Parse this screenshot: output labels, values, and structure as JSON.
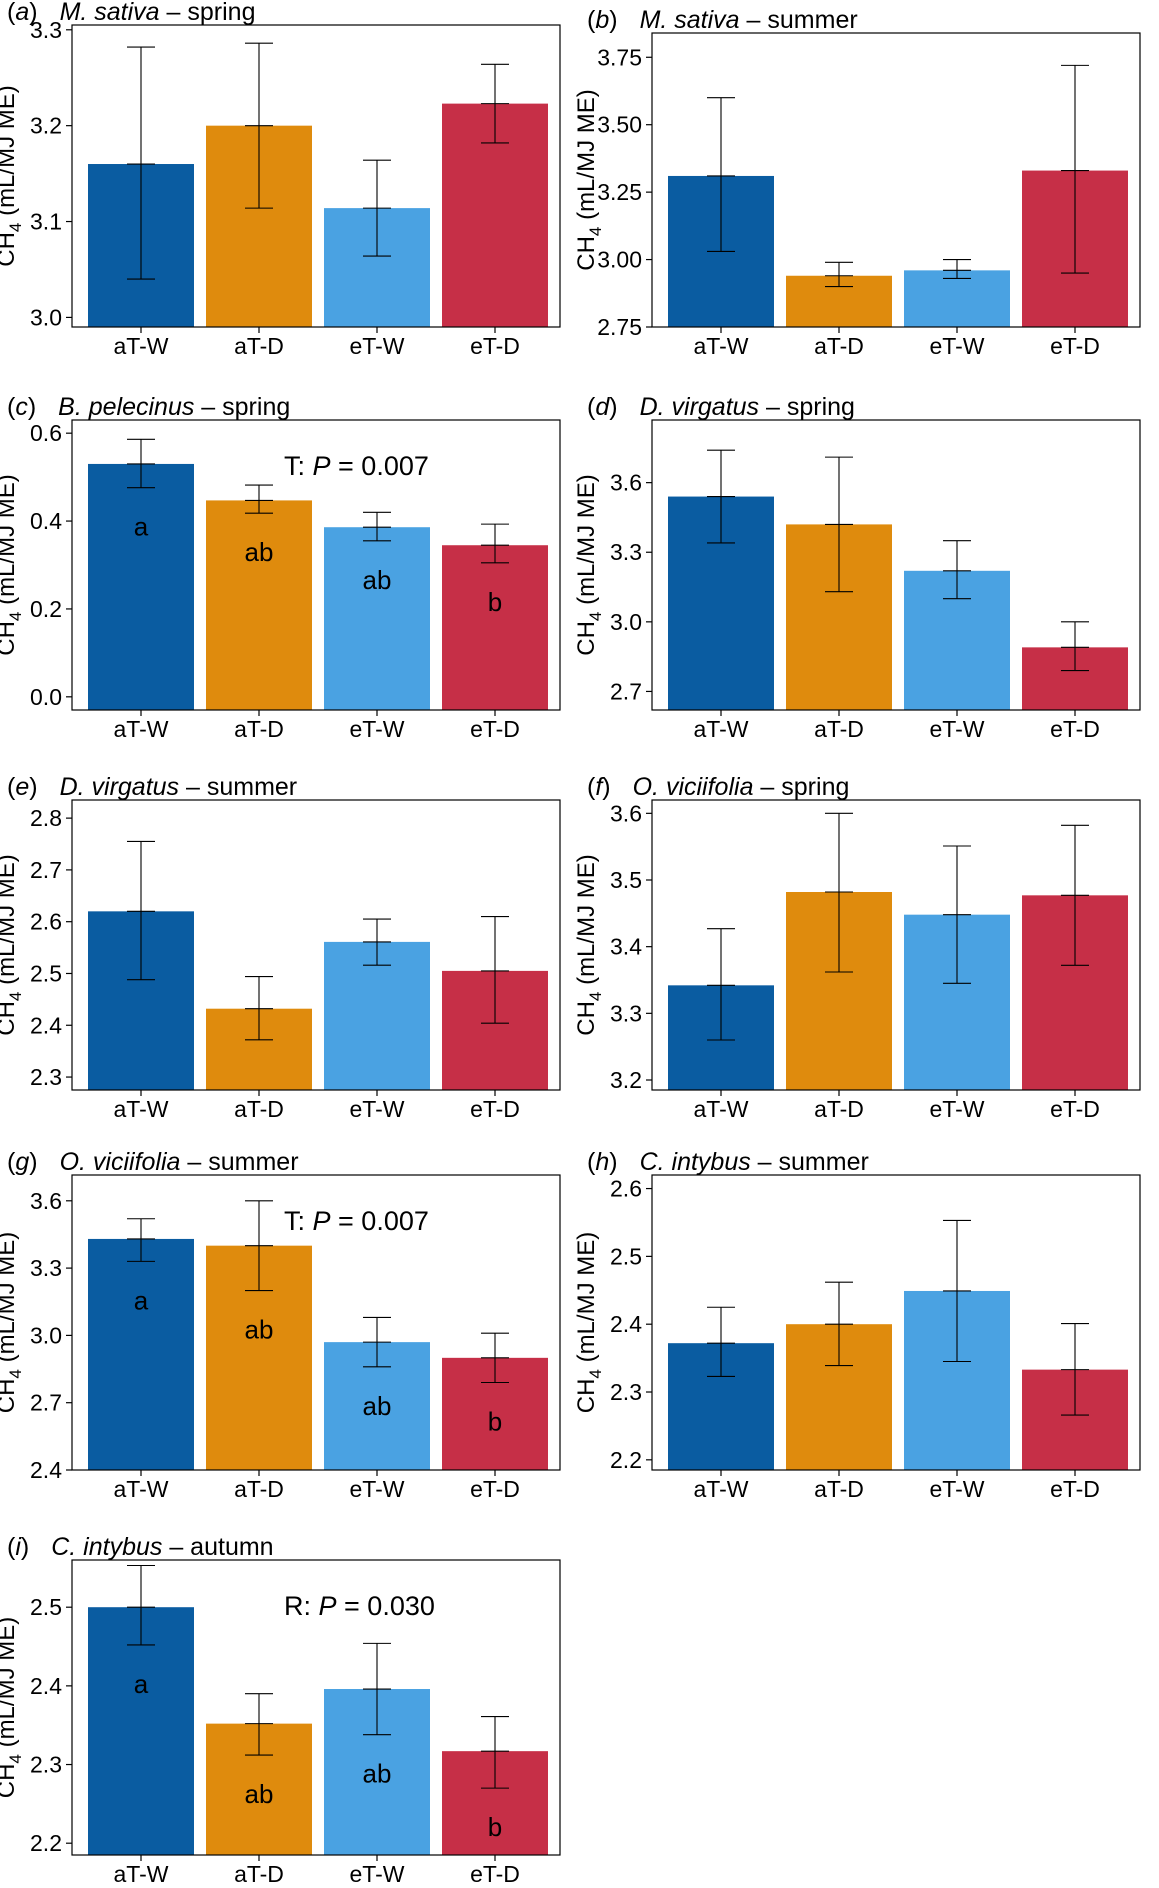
{
  "colors": {
    "aT-W": "#0a5ca1",
    "aT-D": "#df8b0d",
    "eT-W": "#4aa2e2",
    "eT-D": "#c62f47",
    "frame": "#000000",
    "errorbar": "#000000"
  },
  "chart_data": [
    {
      "type": "bar",
      "panel_label": "a",
      "species": "M. sativa",
      "season": "spring",
      "ylabel": "CH4 (mL/MJ ME)",
      "categories": [
        "aT-W",
        "aT-D",
        "eT-W",
        "eT-D"
      ],
      "values": [
        3.16,
        3.2,
        3.114,
        3.223
      ],
      "err_low": [
        3.04,
        3.114,
        3.064,
        3.182
      ],
      "err_high": [
        3.282,
        3.286,
        3.164,
        3.264
      ],
      "ylim": [
        2.99,
        3.305
      ],
      "ticks": [
        3.0,
        3.1,
        3.2,
        3.3
      ],
      "tick_labels": [
        "3.0",
        "3.1",
        "3.2",
        "3.3"
      ],
      "annotation": null,
      "letters": null
    },
    {
      "type": "bar",
      "panel_label": "b",
      "species": "M. sativa",
      "season": "summer",
      "ylabel": "CH4 (mL/MJ ME)",
      "categories": [
        "aT-W",
        "aT-D",
        "eT-W",
        "eT-D"
      ],
      "values": [
        3.31,
        2.94,
        2.96,
        3.33
      ],
      "err_low": [
        3.03,
        2.9,
        2.93,
        2.95
      ],
      "err_high": [
        3.6,
        2.99,
        3.0,
        3.72
      ],
      "ylim": [
        2.75,
        3.84
      ],
      "ticks": [
        2.75,
        3.0,
        3.25,
        3.5,
        3.75
      ],
      "tick_labels": [
        "2.75",
        "3.00",
        "3.25",
        "3.50",
        "3.75"
      ],
      "annotation": null,
      "letters": null
    },
    {
      "type": "bar",
      "panel_label": "c",
      "species": "B. pelecinus",
      "season": "spring",
      "ylabel": "CH4 (mL/MJ ME)",
      "categories": [
        "aT-W",
        "aT-D",
        "eT-W",
        "eT-D"
      ],
      "values": [
        0.53,
        0.447,
        0.386,
        0.345
      ],
      "err_low": [
        0.476,
        0.418,
        0.355,
        0.305
      ],
      "err_high": [
        0.586,
        0.482,
        0.42,
        0.393
      ],
      "ylim": [
        -0.03,
        0.63
      ],
      "ticks": [
        0.0,
        0.2,
        0.4,
        0.6
      ],
      "tick_labels": [
        "0.0",
        "0.2",
        "0.4",
        "0.6"
      ],
      "annotation": {
        "prefix": "T: ",
        "p_letter": "P",
        "suffix": " = 0.007"
      },
      "letters": [
        "a",
        "ab",
        "ab",
        "b"
      ]
    },
    {
      "type": "bar",
      "panel_label": "d",
      "species": "D. virgatus",
      "season": "spring",
      "ylabel": "CH4 (mL/MJ ME)",
      "categories": [
        "aT-W",
        "aT-D",
        "eT-W",
        "eT-D"
      ],
      "values": [
        3.54,
        3.42,
        3.22,
        2.89
      ],
      "err_low": [
        3.34,
        3.13,
        3.1,
        2.79
      ],
      "err_high": [
        3.74,
        3.71,
        3.35,
        3.0
      ],
      "ylim": [
        2.62,
        3.87
      ],
      "ticks": [
        2.7,
        3.0,
        3.3,
        3.6
      ],
      "tick_labels": [
        "2.7",
        "3.0",
        "3.3",
        "3.6"
      ],
      "annotation": null,
      "letters": null
    },
    {
      "type": "bar",
      "panel_label": "e",
      "species": "D. virgatus",
      "season": "summer",
      "ylabel": "CH4 (mL/MJ ME)",
      "categories": [
        "aT-W",
        "aT-D",
        "eT-W",
        "eT-D"
      ],
      "values": [
        2.62,
        2.432,
        2.561,
        2.505
      ],
      "err_low": [
        2.488,
        2.372,
        2.516,
        2.404
      ],
      "err_high": [
        2.755,
        2.494,
        2.605,
        2.61
      ],
      "ylim": [
        2.275,
        2.835
      ],
      "ticks": [
        2.3,
        2.4,
        2.5,
        2.6,
        2.7,
        2.8
      ],
      "tick_labels": [
        "2.3",
        "2.4",
        "2.5",
        "2.6",
        "2.7",
        "2.8"
      ],
      "annotation": null,
      "letters": null
    },
    {
      "type": "bar",
      "panel_label": "f",
      "species": "O. viciifolia",
      "season": "spring",
      "ylabel": "CH4 (mL/MJ ME)",
      "categories": [
        "aT-W",
        "aT-D",
        "eT-W",
        "eT-D"
      ],
      "values": [
        3.342,
        3.482,
        3.448,
        3.477
      ],
      "err_low": [
        3.26,
        3.362,
        3.345,
        3.372
      ],
      "err_high": [
        3.427,
        3.6,
        3.551,
        3.582
      ],
      "ylim": [
        3.185,
        3.62
      ],
      "ticks": [
        3.2,
        3.3,
        3.4,
        3.5,
        3.6
      ],
      "tick_labels": [
        "3.2",
        "3.3",
        "3.4",
        "3.5",
        "3.6"
      ],
      "annotation": null,
      "letters": null
    },
    {
      "type": "bar",
      "panel_label": "g",
      "species": "O. viciifolia",
      "season": "summer",
      "ylabel": "CH4 (mL/MJ ME)",
      "categories": [
        "aT-W",
        "aT-D",
        "eT-W",
        "eT-D"
      ],
      "values": [
        3.43,
        3.4,
        2.97,
        2.9
      ],
      "err_low": [
        3.33,
        3.2,
        2.86,
        2.79
      ],
      "err_high": [
        3.52,
        3.6,
        3.08,
        3.01
      ],
      "ylim": [
        2.4,
        3.715
      ],
      "ticks": [
        2.4,
        2.7,
        3.0,
        3.3,
        3.6
      ],
      "tick_labels": [
        "2.4",
        "2.7",
        "3.0",
        "3.3",
        "3.6"
      ],
      "annotation": {
        "prefix": "T: ",
        "p_letter": "P",
        "suffix": " = 0.007"
      },
      "letters": [
        "a",
        "ab",
        "ab",
        "b"
      ]
    },
    {
      "type": "bar",
      "panel_label": "h",
      "species": "C. intybus",
      "season": "summer",
      "ylabel": "CH4 (mL/MJ ME)",
      "categories": [
        "aT-W",
        "aT-D",
        "eT-W",
        "eT-D"
      ],
      "values": [
        2.372,
        2.4,
        2.449,
        2.333
      ],
      "err_low": [
        2.323,
        2.339,
        2.345,
        2.266
      ],
      "err_high": [
        2.425,
        2.462,
        2.553,
        2.401
      ],
      "ylim": [
        2.185,
        2.62
      ],
      "ticks": [
        2.2,
        2.3,
        2.4,
        2.5,
        2.6
      ],
      "tick_labels": [
        "2.2",
        "2.3",
        "2.4",
        "2.5",
        "2.6"
      ],
      "annotation": null,
      "letters": null
    },
    {
      "type": "bar",
      "panel_label": "i",
      "species": "C. intybus",
      "season": "autumn",
      "ylabel": "CH4 (mL/MJ ME)",
      "categories": [
        "aT-W",
        "aT-D",
        "eT-W",
        "eT-D"
      ],
      "values": [
        2.5,
        2.352,
        2.396,
        2.317
      ],
      "err_low": [
        2.452,
        2.312,
        2.338,
        2.27
      ],
      "err_high": [
        2.553,
        2.39,
        2.454,
        2.361
      ],
      "ylim": [
        2.185,
        2.56
      ],
      "ticks": [
        2.2,
        2.3,
        2.4,
        2.5
      ],
      "tick_labels": [
        "2.2",
        "2.3",
        "2.4",
        "2.5"
      ],
      "annotation": {
        "prefix": "R: ",
        "p_letter": "P",
        "suffix": " = 0.030"
      },
      "letters": [
        "a",
        "ab",
        "ab",
        "b"
      ]
    }
  ]
}
